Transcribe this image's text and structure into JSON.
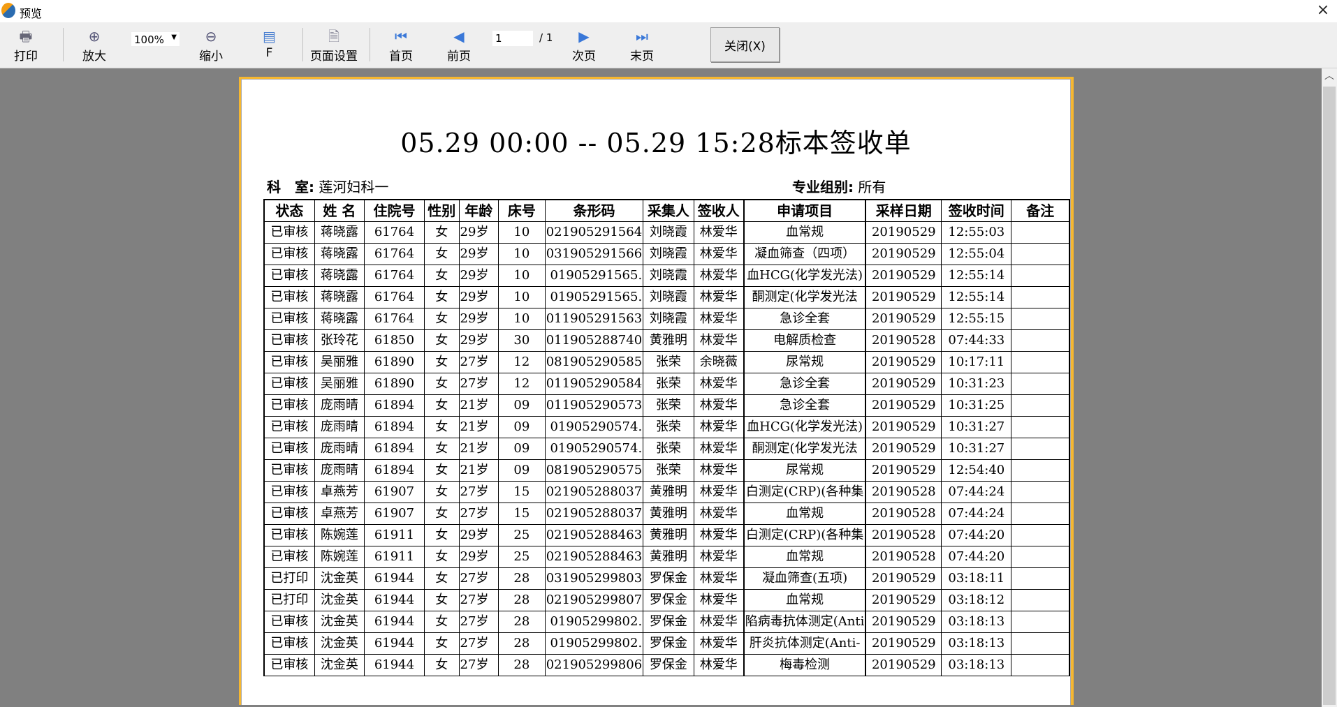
{
  "window": {
    "title": "预览",
    "close_icon": "×"
  },
  "toolbar": {
    "print": "打印",
    "zoom_in": "放大",
    "zoom_value": "100%",
    "zoom_out": "缩小",
    "fit": "F",
    "page_setup": "页面设置",
    "first": "首页",
    "prev": "前页",
    "page_current": "1",
    "page_total": "/ 1",
    "next": "次页",
    "last": "末页",
    "close": "关闭(X)"
  },
  "report": {
    "title": "05.29 00:00 -- 05.29 15:28标本签收单",
    "dept_label": "科　室:",
    "dept_value": "莲河妇科一",
    "group_label": "专业组别:",
    "group_value": "所有",
    "columns": [
      "状态",
      "姓 名",
      "住院号",
      "性别",
      "年龄",
      "床号",
      "条形码",
      "采集人",
      "签收人",
      "申请项目",
      "采样日期",
      "签收时间",
      "备注"
    ],
    "rows": [
      [
        "已审核",
        "蒋晓露",
        "61764",
        "女",
        "29岁",
        "10",
        "021905291564",
        "刘晓霞",
        "林爱华",
        "血常规",
        "20190529",
        "12:55:03",
        ""
      ],
      [
        "已审核",
        "蒋晓露",
        "61764",
        "女",
        "29岁",
        "10",
        "031905291566",
        "刘晓霞",
        "林爱华",
        "凝血筛查（四项）",
        "20190529",
        "12:55:04",
        ""
      ],
      [
        "已审核",
        "蒋晓露",
        "61764",
        "女",
        "29岁",
        "10",
        ".01905291565",
        "刘晓霞",
        "林爱华",
        "血HCG(化学发光法)",
        "20190529",
        "12:55:14",
        ""
      ],
      [
        "已审核",
        "蒋晓露",
        "61764",
        "女",
        "29岁",
        "10",
        ".01905291565",
        "刘晓霞",
        "林爱华",
        "酮测定(化学发光法",
        "20190529",
        "12:55:14",
        ""
      ],
      [
        "已审核",
        "蒋晓露",
        "61764",
        "女",
        "29岁",
        "10",
        "011905291563",
        "刘晓霞",
        "林爱华",
        "急诊全套",
        "20190529",
        "12:55:15",
        ""
      ],
      [
        "已审核",
        "张玲花",
        "61850",
        "女",
        "29岁",
        "30",
        "011905288740",
        "黄雅明",
        "林爱华",
        "电解质检查",
        "20190528",
        "07:44:33",
        ""
      ],
      [
        "已审核",
        "吴丽雅",
        "61890",
        "女",
        "27岁",
        "12",
        "081905290585",
        "张荣",
        "余晓薇",
        "尿常规",
        "20190529",
        "10:17:11",
        ""
      ],
      [
        "已审核",
        "吴丽雅",
        "61890",
        "女",
        "27岁",
        "12",
        "011905290584",
        "张荣",
        "林爱华",
        "急诊全套",
        "20190529",
        "10:31:23",
        ""
      ],
      [
        "已审核",
        "庞雨晴",
        "61894",
        "女",
        "21岁",
        "09",
        "011905290573",
        "张荣",
        "林爱华",
        "急诊全套",
        "20190529",
        "10:31:25",
        ""
      ],
      [
        "已审核",
        "庞雨晴",
        "61894",
        "女",
        "21岁",
        "09",
        ".01905290574",
        "张荣",
        "林爱华",
        "血HCG(化学发光法)",
        "20190529",
        "10:31:27",
        ""
      ],
      [
        "已审核",
        "庞雨晴",
        "61894",
        "女",
        "21岁",
        "09",
        ".01905290574",
        "张荣",
        "林爱华",
        "酮测定(化学发光法",
        "20190529",
        "10:31:27",
        ""
      ],
      [
        "已审核",
        "庞雨晴",
        "61894",
        "女",
        "21岁",
        "09",
        "081905290575",
        "张荣",
        "林爱华",
        "尿常规",
        "20190529",
        "12:54:40",
        ""
      ],
      [
        "已审核",
        "卓燕芳",
        "61907",
        "女",
        "27岁",
        "15",
        "021905288037",
        "黄雅明",
        "林爱华",
        "白测定(CRP)(各种集",
        "20190528",
        "07:44:24",
        ""
      ],
      [
        "已审核",
        "卓燕芳",
        "61907",
        "女",
        "27岁",
        "15",
        "021905288037",
        "黄雅明",
        "林爱华",
        "血常规",
        "20190528",
        "07:44:24",
        ""
      ],
      [
        "已审核",
        "陈婉莲",
        "61911",
        "女",
        "29岁",
        "25",
        "021905288463",
        "黄雅明",
        "林爱华",
        "白测定(CRP)(各种集",
        "20190528",
        "07:44:20",
        ""
      ],
      [
        "已审核",
        "陈婉莲",
        "61911",
        "女",
        "29岁",
        "25",
        "021905288463",
        "黄雅明",
        "林爱华",
        "血常规",
        "20190528",
        "07:44:20",
        ""
      ],
      [
        "已打印",
        "沈金英",
        "61944",
        "女",
        "27岁",
        "28",
        "031905299803",
        "罗保金",
        "林爱华",
        "凝血筛查(五项)",
        "20190529",
        "03:18:11",
        ""
      ],
      [
        "已打印",
        "沈金英",
        "61944",
        "女",
        "27岁",
        "28",
        "021905299807",
        "罗保金",
        "林爱华",
        "血常规",
        "20190529",
        "03:18:12",
        ""
      ],
      [
        "已审核",
        "沈金英",
        "61944",
        "女",
        "27岁",
        "28",
        ".01905299802",
        "罗保金",
        "林爱华",
        "陷病毒抗体测定(Anti",
        "20190529",
        "03:18:13",
        ""
      ],
      [
        "已审核",
        "沈金英",
        "61944",
        "女",
        "27岁",
        "28",
        ".01905299802",
        "罗保金",
        "林爱华",
        "肝炎抗体测定(Anti-",
        "20190529",
        "03:18:13",
        ""
      ],
      [
        "已审核",
        "沈金英",
        "61944",
        "女",
        "27岁",
        "28",
        "021905299806",
        "罗保金",
        "林爱华",
        "梅毒检测",
        "20190529",
        "03:18:13",
        ""
      ]
    ]
  },
  "colors": {
    "page_border": "#f5b731",
    "viewport_bg": "#808080",
    "toolbar_bg": "#efefef"
  }
}
